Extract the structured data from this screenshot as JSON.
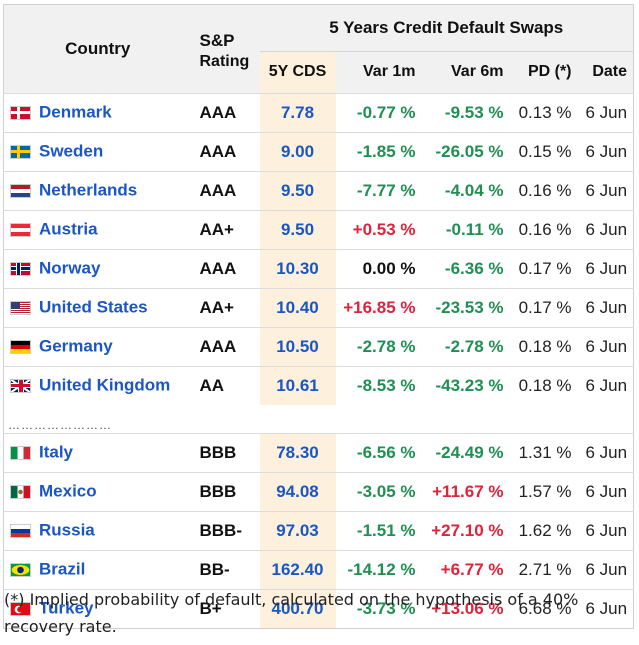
{
  "header": {
    "country": "Country",
    "rating_line1": "S&P",
    "rating_line2": "Rating",
    "group": "5 Years Credit Default Swaps",
    "cols": [
      "5Y CDS",
      "Var 1m",
      "Var 6m",
      "PD (*)",
      "Date"
    ]
  },
  "rows_top": [
    {
      "country": "Denmark",
      "flag": "dk-flag-icon",
      "rating": "AAA",
      "cds": "7.78",
      "var1m": "-0.77 %",
      "var6m": "-9.53 %",
      "pd": "0.13 %",
      "date": "6 Jun"
    },
    {
      "country": "Sweden",
      "flag": "se-flag-icon",
      "rating": "AAA",
      "cds": "9.00",
      "var1m": "-1.85 %",
      "var6m": "-26.05 %",
      "pd": "0.15 %",
      "date": "6 Jun"
    },
    {
      "country": "Netherlands",
      "flag": "nl-flag-icon",
      "rating": "AAA",
      "cds": "9.50",
      "var1m": "-7.77 %",
      "var6m": "-4.04 %",
      "pd": "0.16 %",
      "date": "6 Jun"
    },
    {
      "country": "Austria",
      "flag": "at-flag-icon",
      "rating": "AA+",
      "cds": "9.50",
      "var1m": "+0.53 %",
      "var6m": "-0.11 %",
      "pd": "0.16 %",
      "date": "6 Jun"
    },
    {
      "country": "Norway",
      "flag": "no-flag-icon",
      "rating": "AAA",
      "cds": "10.30",
      "var1m": "0.00 %",
      "var6m": "-6.36 %",
      "pd": "0.17 %",
      "date": "6 Jun"
    },
    {
      "country": "United States",
      "flag": "us-flag-icon",
      "rating": "AA+",
      "cds": "10.40",
      "var1m": "+16.85 %",
      "var6m": "-23.53 %",
      "pd": "0.17 %",
      "date": "6 Jun"
    },
    {
      "country": "Germany",
      "flag": "de-flag-icon",
      "rating": "AAA",
      "cds": "10.50",
      "var1m": "-2.78 %",
      "var6m": "-2.78 %",
      "pd": "0.18 %",
      "date": "6 Jun"
    },
    {
      "country": "United Kingdom",
      "flag": "uk-flag-icon",
      "rating": "AA",
      "cds": "10.61",
      "var1m": "-8.53 %",
      "var6m": "-43.23 %",
      "pd": "0.18 %",
      "date": "6 Jun"
    }
  ],
  "separator": "……………………",
  "rows_bottom": [
    {
      "country": "Italy",
      "flag": "it-flag-icon",
      "rating": "BBB",
      "cds": "78.30",
      "var1m": "-6.56 %",
      "var6m": "-24.49 %",
      "pd": "1.31 %",
      "date": "6 Jun"
    },
    {
      "country": "Mexico",
      "flag": "mx-flag-icon",
      "rating": "BBB",
      "cds": "94.08",
      "var1m": "-3.05 %",
      "var6m": "+11.67 %",
      "pd": "1.57 %",
      "date": "6 Jun"
    },
    {
      "country": "Russia",
      "flag": "ru-flag-icon",
      "rating": "BBB-",
      "cds": "97.03",
      "var1m": "-1.51 %",
      "var6m": "+27.10 %",
      "pd": "1.62 %",
      "date": "6 Jun"
    },
    {
      "country": "Brazil",
      "flag": "br-flag-icon",
      "rating": "BB-",
      "cds": "162.40",
      "var1m": "-14.12 %",
      "var6m": "+6.77 %",
      "pd": "2.71 %",
      "date": "6 Jun"
    },
    {
      "country": "Turkey",
      "flag": "tr-flag-icon",
      "rating": "B+",
      "cds": "400.70",
      "var1m": "-3.73 %",
      "var6m": "+13.06 %",
      "pd": "6.68 %",
      "date": "6 Jun"
    }
  ],
  "footnote": "(*) Implied probability of default, calculated on the hypothesis of a 40% recovery rate.",
  "colors": {
    "positive": "#e0223a",
    "negative": "#1f8f52",
    "link": "#1a56c4",
    "cds_bg": "#fdf0dc",
    "header_bg": "#f1f1f1"
  }
}
